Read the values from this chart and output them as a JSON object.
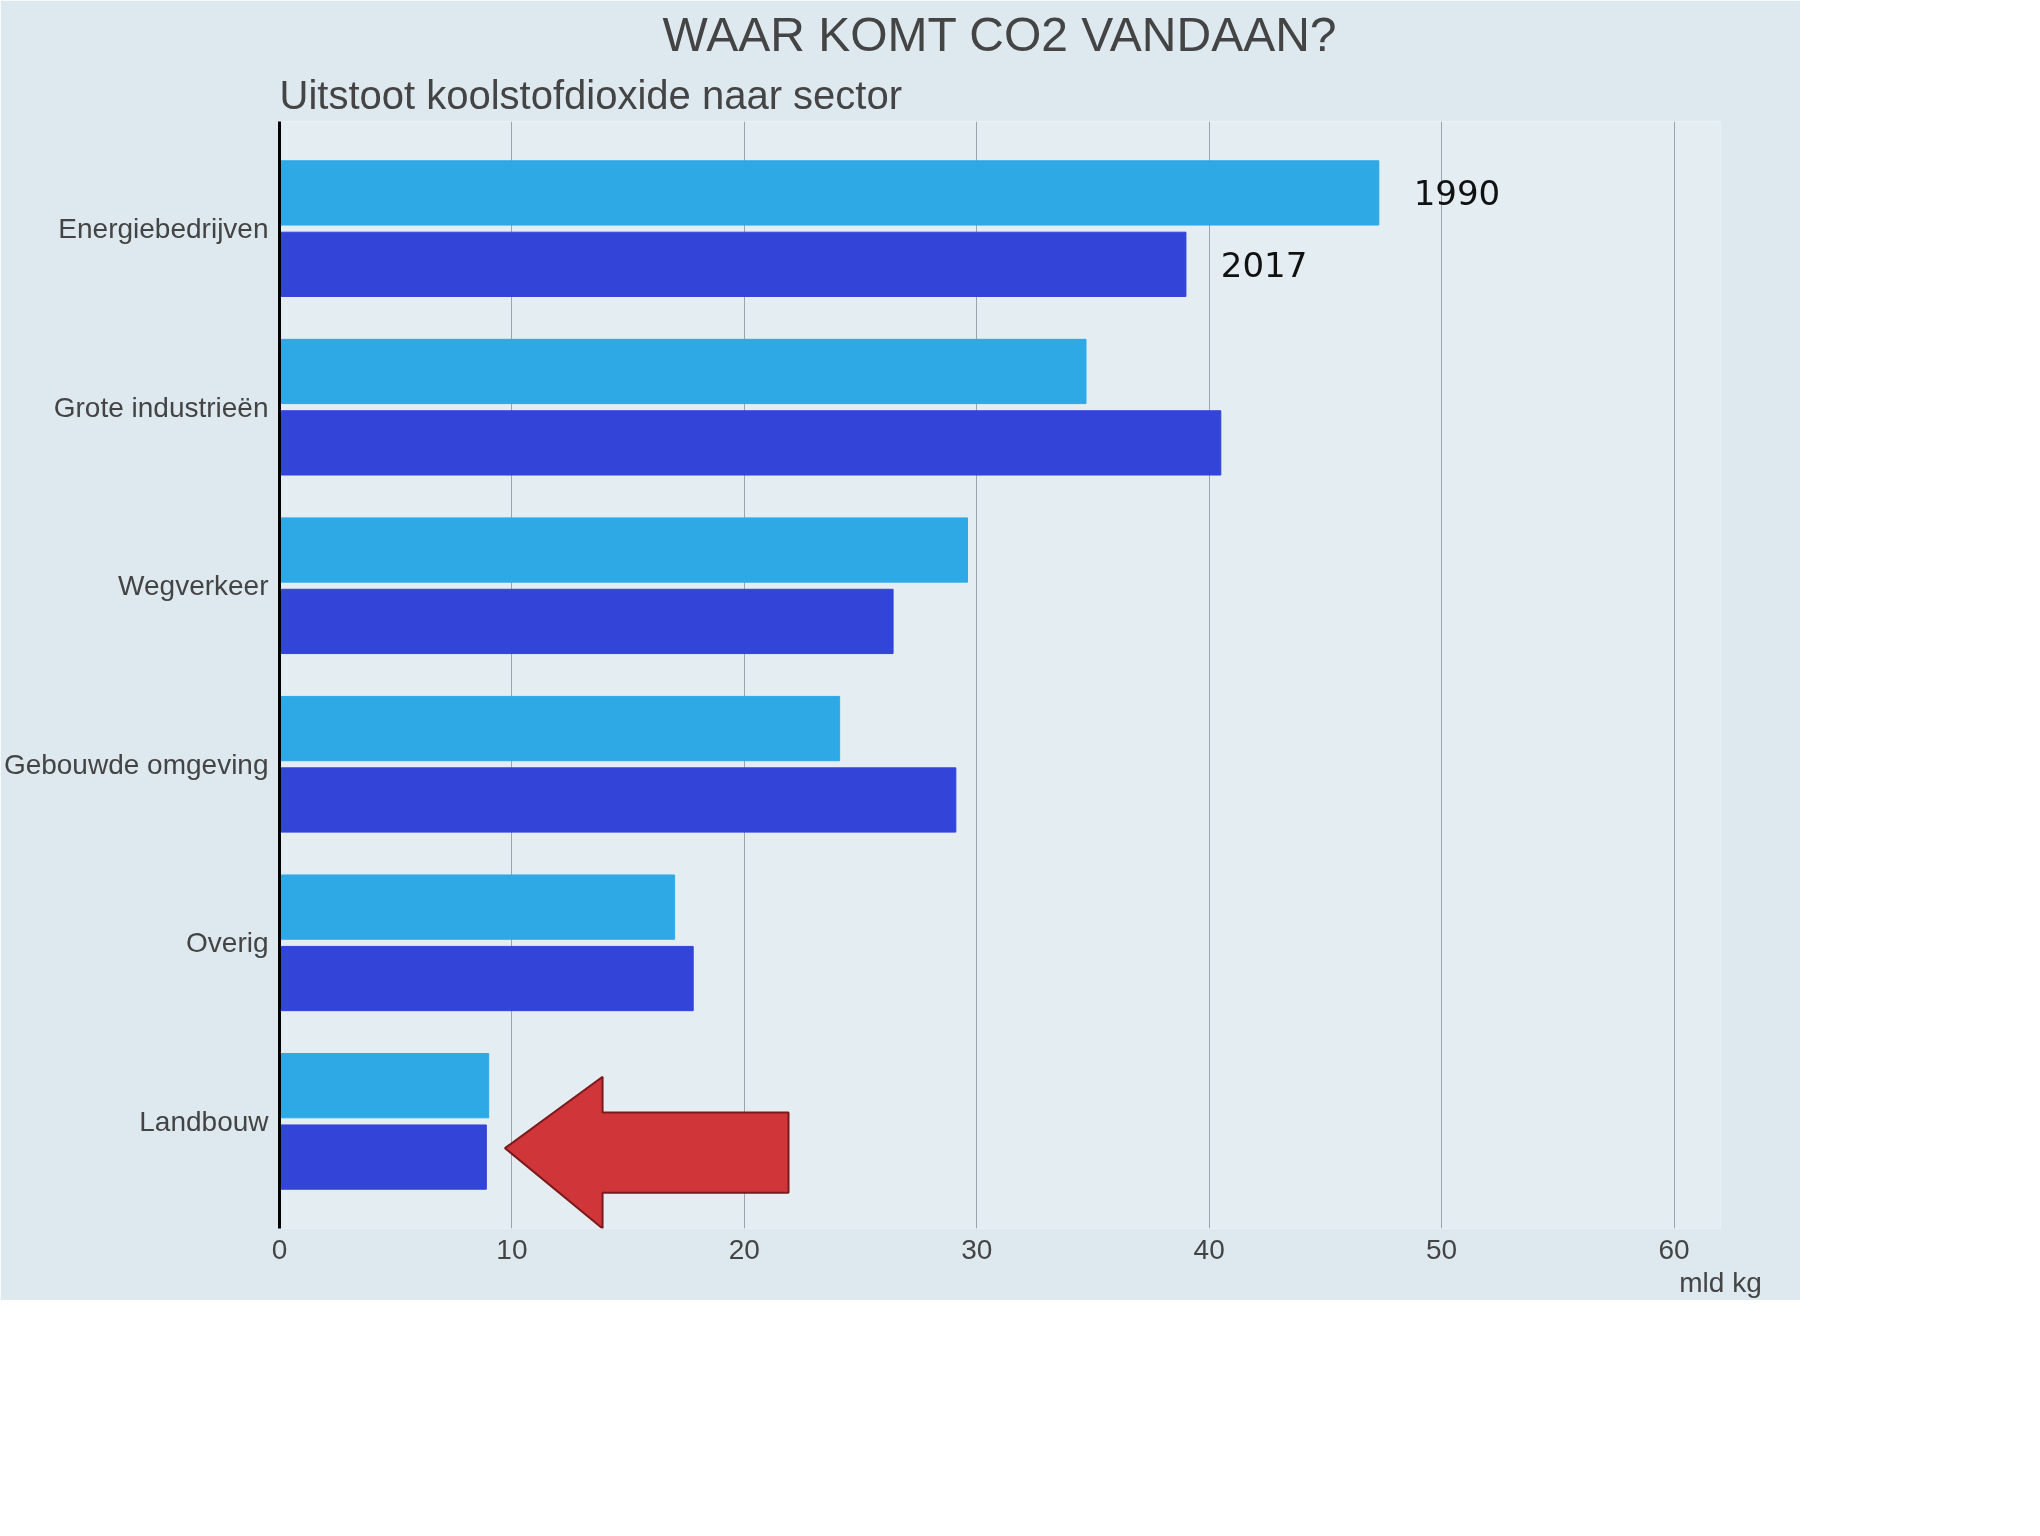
{
  "chart_data": {
    "type": "bar",
    "orientation": "horizontal",
    "title": "WAAR KOMT CO2 VANDAAN?",
    "subtitle": "Uitstoot koolstofdioxide naar sector",
    "xlabel": "mld kg",
    "categories": [
      "Energiebedrijven",
      "Grote industrieën",
      "Wegverkeer",
      "Gebouwde omgeving",
      "Overig",
      "Landbouw"
    ],
    "series": [
      {
        "name": "1990",
        "color": "#2fa8e6",
        "values": [
          47.3,
          34.7,
          29.6,
          24.1,
          17.0,
          9.0
        ]
      },
      {
        "name": "2017",
        "color": "#3344d8",
        "values": [
          39.0,
          40.5,
          26.4,
          29.1,
          17.8,
          8.9
        ]
      }
    ],
    "xlim": [
      0,
      62
    ],
    "xticks": [
      0,
      10,
      20,
      30,
      40,
      50,
      60
    ],
    "grid": "x"
  }
}
